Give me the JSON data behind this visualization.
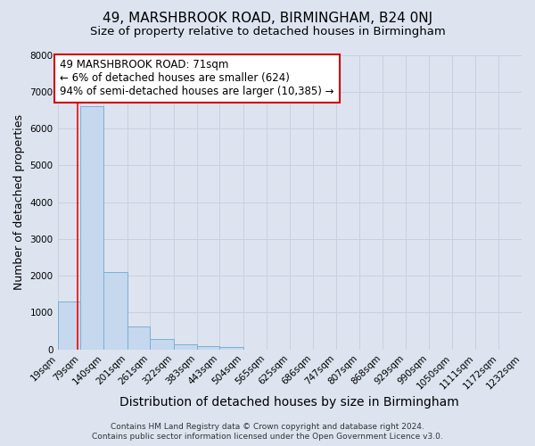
{
  "title": "49, MARSHBROOK ROAD, BIRMINGHAM, B24 0NJ",
  "subtitle": "Size of property relative to detached houses in Birmingham",
  "xlabel": "Distribution of detached houses by size in Birmingham",
  "ylabel": "Number of detached properties",
  "bar_heights": [
    1300,
    6600,
    2100,
    630,
    290,
    140,
    80,
    60,
    0,
    0,
    0,
    0,
    0,
    0,
    0,
    0,
    0,
    0,
    0,
    0
  ],
  "bin_edges": [
    19,
    79,
    140,
    201,
    261,
    322,
    383,
    443,
    504,
    565,
    625,
    686,
    747,
    807,
    868,
    929,
    990,
    1050,
    1111,
    1172,
    1232
  ],
  "bin_labels": [
    "19sqm",
    "79sqm",
    "140sqm",
    "201sqm",
    "261sqm",
    "322sqm",
    "383sqm",
    "443sqm",
    "504sqm",
    "565sqm",
    "625sqm",
    "686sqm",
    "747sqm",
    "807sqm",
    "868sqm",
    "929sqm",
    "990sqm",
    "1050sqm",
    "1111sqm",
    "1172sqm",
    "1232sqm"
  ],
  "bar_color": "#c5d8ed",
  "bar_edge_color": "#7bafd4",
  "red_line_x": 71,
  "annotation_line1": "49 MARSHBROOK ROAD: 71sqm",
  "annotation_line2": "← 6% of detached houses are smaller (624)",
  "annotation_line3": "94% of semi-detached houses are larger (10,385) →",
  "annotation_box_color": "white",
  "annotation_box_edge": "#cc0000",
  "ylim": [
    0,
    8000
  ],
  "yticks": [
    0,
    1000,
    2000,
    3000,
    4000,
    5000,
    6000,
    7000,
    8000
  ],
  "footer_line1": "Contains HM Land Registry data © Crown copyright and database right 2024.",
  "footer_line2": "Contains public sector information licensed under the Open Government Licence v3.0.",
  "background_color": "#dde4f0",
  "grid_color": "#c8d0e0",
  "title_fontsize": 11,
  "subtitle_fontsize": 9.5,
  "xlabel_fontsize": 10,
  "ylabel_fontsize": 9,
  "tick_fontsize": 7.5,
  "annotation_fontsize": 8.5,
  "footer_fontsize": 6.5
}
